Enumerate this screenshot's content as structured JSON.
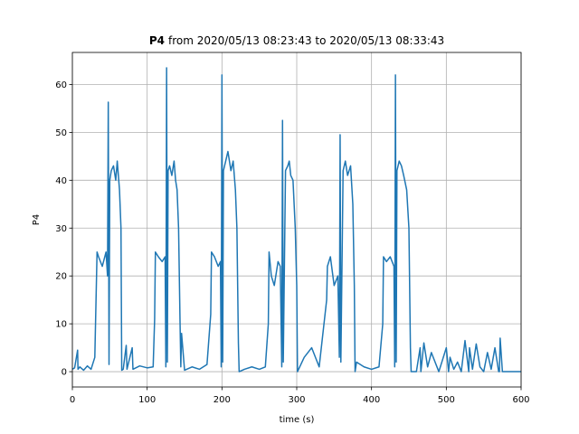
{
  "chart_data": {
    "type": "line",
    "title_bold": "P4",
    "title": "from 2020/05/13 08:23:43 to 2020/05/13 08:33:43",
    "xlabel": "time (s)",
    "ylabel": "P4",
    "color": "#1f77b4",
    "xlim": [
      0,
      600
    ],
    "xticks": [
      0,
      100,
      200,
      300,
      400,
      500,
      600
    ],
    "ylim": [
      -3.2,
      66.7
    ],
    "yticks": [
      0,
      10,
      20,
      30,
      40,
      50,
      60
    ],
    "grid": true,
    "x": [
      0,
      3,
      7,
      7.5,
      10,
      15,
      20,
      25,
      30,
      33,
      35,
      40,
      45,
      47,
      48,
      49,
      50,
      52,
      55,
      58,
      60,
      63,
      65,
      66,
      68,
      72,
      73,
      80,
      81,
      90,
      100,
      108,
      110,
      111,
      115,
      120,
      124,
      125,
      126,
      127,
      128,
      130,
      133,
      136,
      138,
      140,
      142,
      144,
      145,
      146,
      150,
      160,
      170,
      180,
      185,
      186,
      190,
      195,
      198,
      199,
      200,
      201,
      202,
      205,
      208,
      212,
      215,
      218,
      220,
      222,
      223,
      230,
      240,
      250,
      258,
      262,
      263,
      266,
      270,
      275,
      278,
      280,
      281,
      282,
      285,
      288,
      290,
      292,
      295,
      298,
      300,
      301,
      310,
      320,
      330,
      340,
      341,
      345,
      350,
      355,
      357,
      358,
      359,
      362,
      365,
      368,
      372,
      375,
      377,
      378,
      380,
      390,
      400,
      410,
      415,
      416,
      420,
      425,
      430,
      431,
      432,
      433,
      434,
      437,
      440,
      443,
      447,
      450,
      452,
      453,
      460,
      465,
      466,
      470,
      475,
      480,
      490,
      500,
      503,
      505,
      510,
      515,
      520,
      525,
      530,
      531,
      535,
      540,
      545,
      550,
      555,
      560,
      565,
      570,
      571,
      572,
      575,
      580,
      590,
      600
    ],
    "values": [
      0.5,
      0.8,
      4.5,
      0.5,
      1,
      0.3,
      1.2,
      0.5,
      3,
      25,
      24,
      22,
      25,
      20,
      56.3,
      1.5,
      40,
      42,
      43,
      40,
      44,
      38,
      30,
      0.3,
      0.5,
      5.5,
      0.5,
      5,
      0.5,
      1.2,
      0.8,
      1,
      11,
      25,
      24,
      23,
      24,
      1,
      63.5,
      2,
      42,
      43,
      41,
      44,
      40,
      38,
      30,
      10,
      1,
      8,
      0.3,
      1,
      0.5,
      1.5,
      12,
      25,
      24,
      22,
      23,
      1,
      62,
      2,
      42,
      44,
      46,
      42,
      44,
      38,
      30,
      6,
      0,
      0.5,
      1,
      0.5,
      1,
      10,
      25,
      20,
      18,
      23,
      22,
      1,
      52.5,
      2,
      42,
      43,
      44,
      41,
      40,
      30,
      18,
      0,
      3,
      5,
      1,
      15,
      22,
      24,
      18,
      20,
      3,
      49.5,
      2,
      42,
      44,
      41,
      43,
      35,
      18,
      0,
      2,
      1,
      0.5,
      1,
      10,
      24,
      23,
      24,
      22,
      1,
      62,
      2,
      42,
      44,
      43,
      41,
      38,
      30,
      5,
      0,
      0,
      5,
      0,
      6,
      1,
      4,
      0,
      5,
      0,
      3,
      0.5,
      2,
      0,
      6.5,
      0,
      5,
      0.5,
      5.8,
      1,
      0,
      4,
      0.5,
      5,
      0,
      0,
      7,
      0,
      0,
      0,
      0
    ]
  }
}
